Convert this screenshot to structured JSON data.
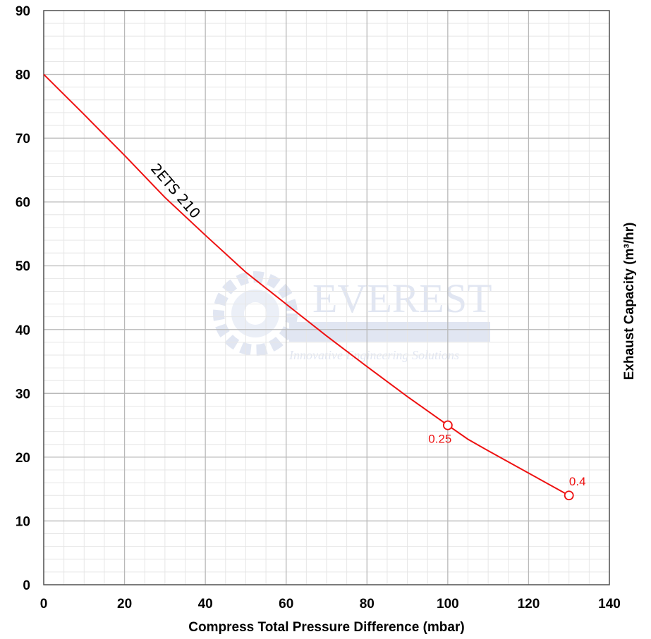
{
  "chart_data": {
    "type": "line",
    "xlabel": "Compress Total Pressure Difference (mbar)",
    "ylabel": "Exhaust Capacity (m³/hr)",
    "xlim": [
      0,
      140
    ],
    "ylim": [
      0,
      90
    ],
    "x_ticks": [
      "0",
      "20",
      "40",
      "60",
      "80",
      "100",
      "120",
      "140"
    ],
    "y_ticks": [
      "0",
      "10",
      "20",
      "30",
      "40",
      "50",
      "60",
      "70",
      "80",
      "90"
    ],
    "grid": true,
    "series": [
      {
        "name": "2ETS 210",
        "color": "#ee1111",
        "x": [
          0,
          10,
          20,
          30,
          40,
          50,
          60,
          70,
          80,
          90,
          100,
          105,
          110,
          120,
          130
        ],
        "y": [
          80,
          73.7,
          67.3,
          60.7,
          54.8,
          49.0,
          44.0,
          39.0,
          34.2,
          29.5,
          25.0,
          22.8,
          21.0,
          17.5,
          14.0
        ]
      }
    ],
    "annotations": [
      {
        "x": 100,
        "y": 25,
        "label": "0.25"
      },
      {
        "x": 130,
        "y": 14,
        "label": "0.4"
      }
    ]
  },
  "watermark": {
    "company": "EVEREST",
    "tagline": "Innovative Engineering Solutions",
    "color": "#c9d3e8"
  }
}
